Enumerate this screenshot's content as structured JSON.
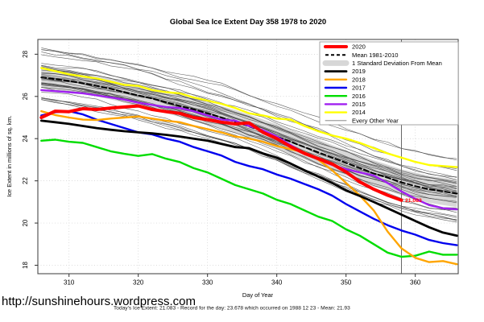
{
  "title": "Global Sea Ice Extent Day 358 1978 to 2020",
  "footer": {
    "url": "http://sunshinehours.wordpress.com",
    "status": "Today's Ice Extent: 21.083  - Record for the day: 23.678 which occurred on 1988 12 23  - Mean: 21.93"
  },
  "annotation": {
    "label": "21.083",
    "day": 358,
    "value": 21.083,
    "color": "#ff0000"
  },
  "marker": {
    "day": 358,
    "color": "#666666"
  },
  "chart_data": {
    "type": "line",
    "title": "Global Sea Ice Extent Day 358 1978 to 2020",
    "xlabel": "Day of Year",
    "ylabel": "Ice Extent in millions of sq. km.",
    "x_ticks": [
      310,
      320,
      330,
      340,
      350,
      360
    ],
    "y_ticks": [
      18,
      20,
      22,
      24,
      26,
      28
    ],
    "xlim": [
      305.5,
      366.2
    ],
    "ylim": [
      17.6,
      28.7
    ],
    "grid": "dotted",
    "legend_position": "top-right",
    "x": [
      306,
      308,
      310,
      312,
      314,
      316,
      318,
      320,
      322,
      324,
      326,
      328,
      330,
      332,
      334,
      336,
      338,
      340,
      342,
      344,
      346,
      348,
      350,
      352,
      354,
      356,
      358,
      360,
      362,
      364,
      366
    ],
    "series": [
      {
        "name": "2020",
        "color": "#ff0000",
        "width": 4,
        "values": [
          25.0,
          25.3,
          25.28,
          25.42,
          25.38,
          25.45,
          25.5,
          25.55,
          25.38,
          25.28,
          25.2,
          25.0,
          24.9,
          24.78,
          24.7,
          24.75,
          24.3,
          24.0,
          23.62,
          23.3,
          23.05,
          22.8,
          22.42,
          21.95,
          21.6,
          21.32,
          21.08
        ]
      },
      {
        "name": "Mean 1981-2010",
        "color": "#000000",
        "width": 2,
        "dash": "6 3.5",
        "values": [
          26.9,
          26.82,
          26.73,
          26.62,
          26.5,
          26.36,
          26.2,
          26.05,
          25.9,
          25.72,
          25.55,
          25.38,
          25.2,
          25.0,
          24.8,
          24.58,
          24.35,
          24.1,
          23.85,
          23.6,
          23.35,
          23.1,
          22.85,
          22.6,
          22.35,
          22.15,
          21.93,
          21.75,
          21.6,
          21.5,
          21.4
        ]
      },
      {
        "name": "1 Standard Deviation From Mean",
        "band": true,
        "color": "#d7d7d7",
        "upper": [
          27.4,
          27.32,
          27.23,
          27.12,
          27.0,
          26.86,
          26.7,
          26.55,
          26.42,
          26.24,
          26.07,
          25.92,
          25.74,
          25.54,
          25.36,
          25.14,
          24.91,
          24.68,
          24.43,
          24.18,
          23.95,
          23.7,
          23.45,
          23.22,
          22.97,
          22.77,
          22.55,
          22.39,
          22.24,
          22.15,
          22.05
        ],
        "lower": [
          26.4,
          26.32,
          26.23,
          26.12,
          26.0,
          25.86,
          25.7,
          25.55,
          25.38,
          25.2,
          25.03,
          24.84,
          24.66,
          24.46,
          24.24,
          24.02,
          23.79,
          23.52,
          23.27,
          23.02,
          22.75,
          22.5,
          22.25,
          21.98,
          21.73,
          21.53,
          21.31,
          21.11,
          20.96,
          20.85,
          20.75
        ]
      },
      {
        "name": "2019",
        "color": "#000000",
        "width": 2.8,
        "values": [
          24.85,
          24.78,
          24.7,
          24.6,
          24.5,
          24.42,
          24.35,
          24.3,
          24.25,
          24.18,
          24.1,
          24.0,
          23.9,
          23.75,
          23.6,
          23.55,
          23.3,
          23.1,
          22.82,
          22.5,
          22.2,
          21.9,
          21.55,
          21.28,
          21.0,
          20.7,
          20.4,
          20.1,
          19.8,
          19.55,
          19.4
        ]
      },
      {
        "name": "2018",
        "color": "#ffa500",
        "width": 2.4,
        "values": [
          25.3,
          25.12,
          25.0,
          24.9,
          24.88,
          24.95,
          25.0,
          25.05,
          24.95,
          24.85,
          24.78,
          24.6,
          24.45,
          24.3,
          24.1,
          24.0,
          23.85,
          23.65,
          23.5,
          23.35,
          23.0,
          22.5,
          21.9,
          21.3,
          20.6,
          19.6,
          18.8,
          18.35,
          18.15,
          18.2,
          18.05
        ]
      },
      {
        "name": "2017",
        "color": "#0000ee",
        "width": 2.4,
        "values": [
          25.1,
          25.25,
          25.3,
          25.15,
          24.9,
          24.7,
          24.5,
          24.3,
          24.2,
          24.0,
          23.85,
          23.6,
          23.4,
          23.2,
          22.9,
          22.7,
          22.55,
          22.3,
          22.1,
          21.85,
          21.6,
          21.3,
          20.9,
          20.55,
          20.2,
          19.9,
          19.65,
          19.45,
          19.2,
          19.05,
          18.95
        ]
      },
      {
        "name": "2016",
        "color": "#00dd00",
        "width": 2.4,
        "values": [
          23.9,
          23.95,
          23.85,
          23.8,
          23.6,
          23.4,
          23.28,
          23.18,
          23.27,
          23.05,
          22.89,
          22.6,
          22.4,
          22.1,
          21.8,
          21.6,
          21.4,
          21.1,
          20.9,
          20.6,
          20.3,
          20.1,
          19.7,
          19.4,
          19.0,
          18.6,
          18.4,
          18.45,
          18.65,
          18.5,
          18.5
        ]
      },
      {
        "name": "2015",
        "color": "#a020f0",
        "width": 2.4,
        "values": [
          26.3,
          26.25,
          26.2,
          26.15,
          26.05,
          25.95,
          25.85,
          25.7,
          25.6,
          25.5,
          25.45,
          25.3,
          25.1,
          24.9,
          24.85,
          24.6,
          24.4,
          24.1,
          23.7,
          23.3,
          23.0,
          22.75,
          22.55,
          22.4,
          22.25,
          21.9,
          21.5,
          21.15,
          20.85,
          20.7,
          20.65
        ]
      },
      {
        "name": "2014",
        "color": "#ffff00",
        "width": 2.4,
        "values": [
          27.35,
          27.2,
          27.05,
          26.95,
          26.85,
          26.7,
          26.55,
          26.5,
          26.3,
          26.2,
          26.15,
          25.95,
          25.8,
          25.65,
          25.45,
          25.2,
          25.1,
          24.95,
          24.9,
          24.6,
          24.35,
          24.15,
          24.0,
          23.8,
          23.55,
          23.3,
          23.1,
          22.9,
          22.75,
          22.7,
          22.65
        ]
      }
    ],
    "background": {
      "label": "Every Other Year",
      "legend_color": "#777777",
      "color": "#383838",
      "count": 34,
      "seed": 11,
      "offset_min": -1.05,
      "offset_max": 1.35,
      "end_spread": 0.8,
      "wiggle": 0.16
    }
  }
}
